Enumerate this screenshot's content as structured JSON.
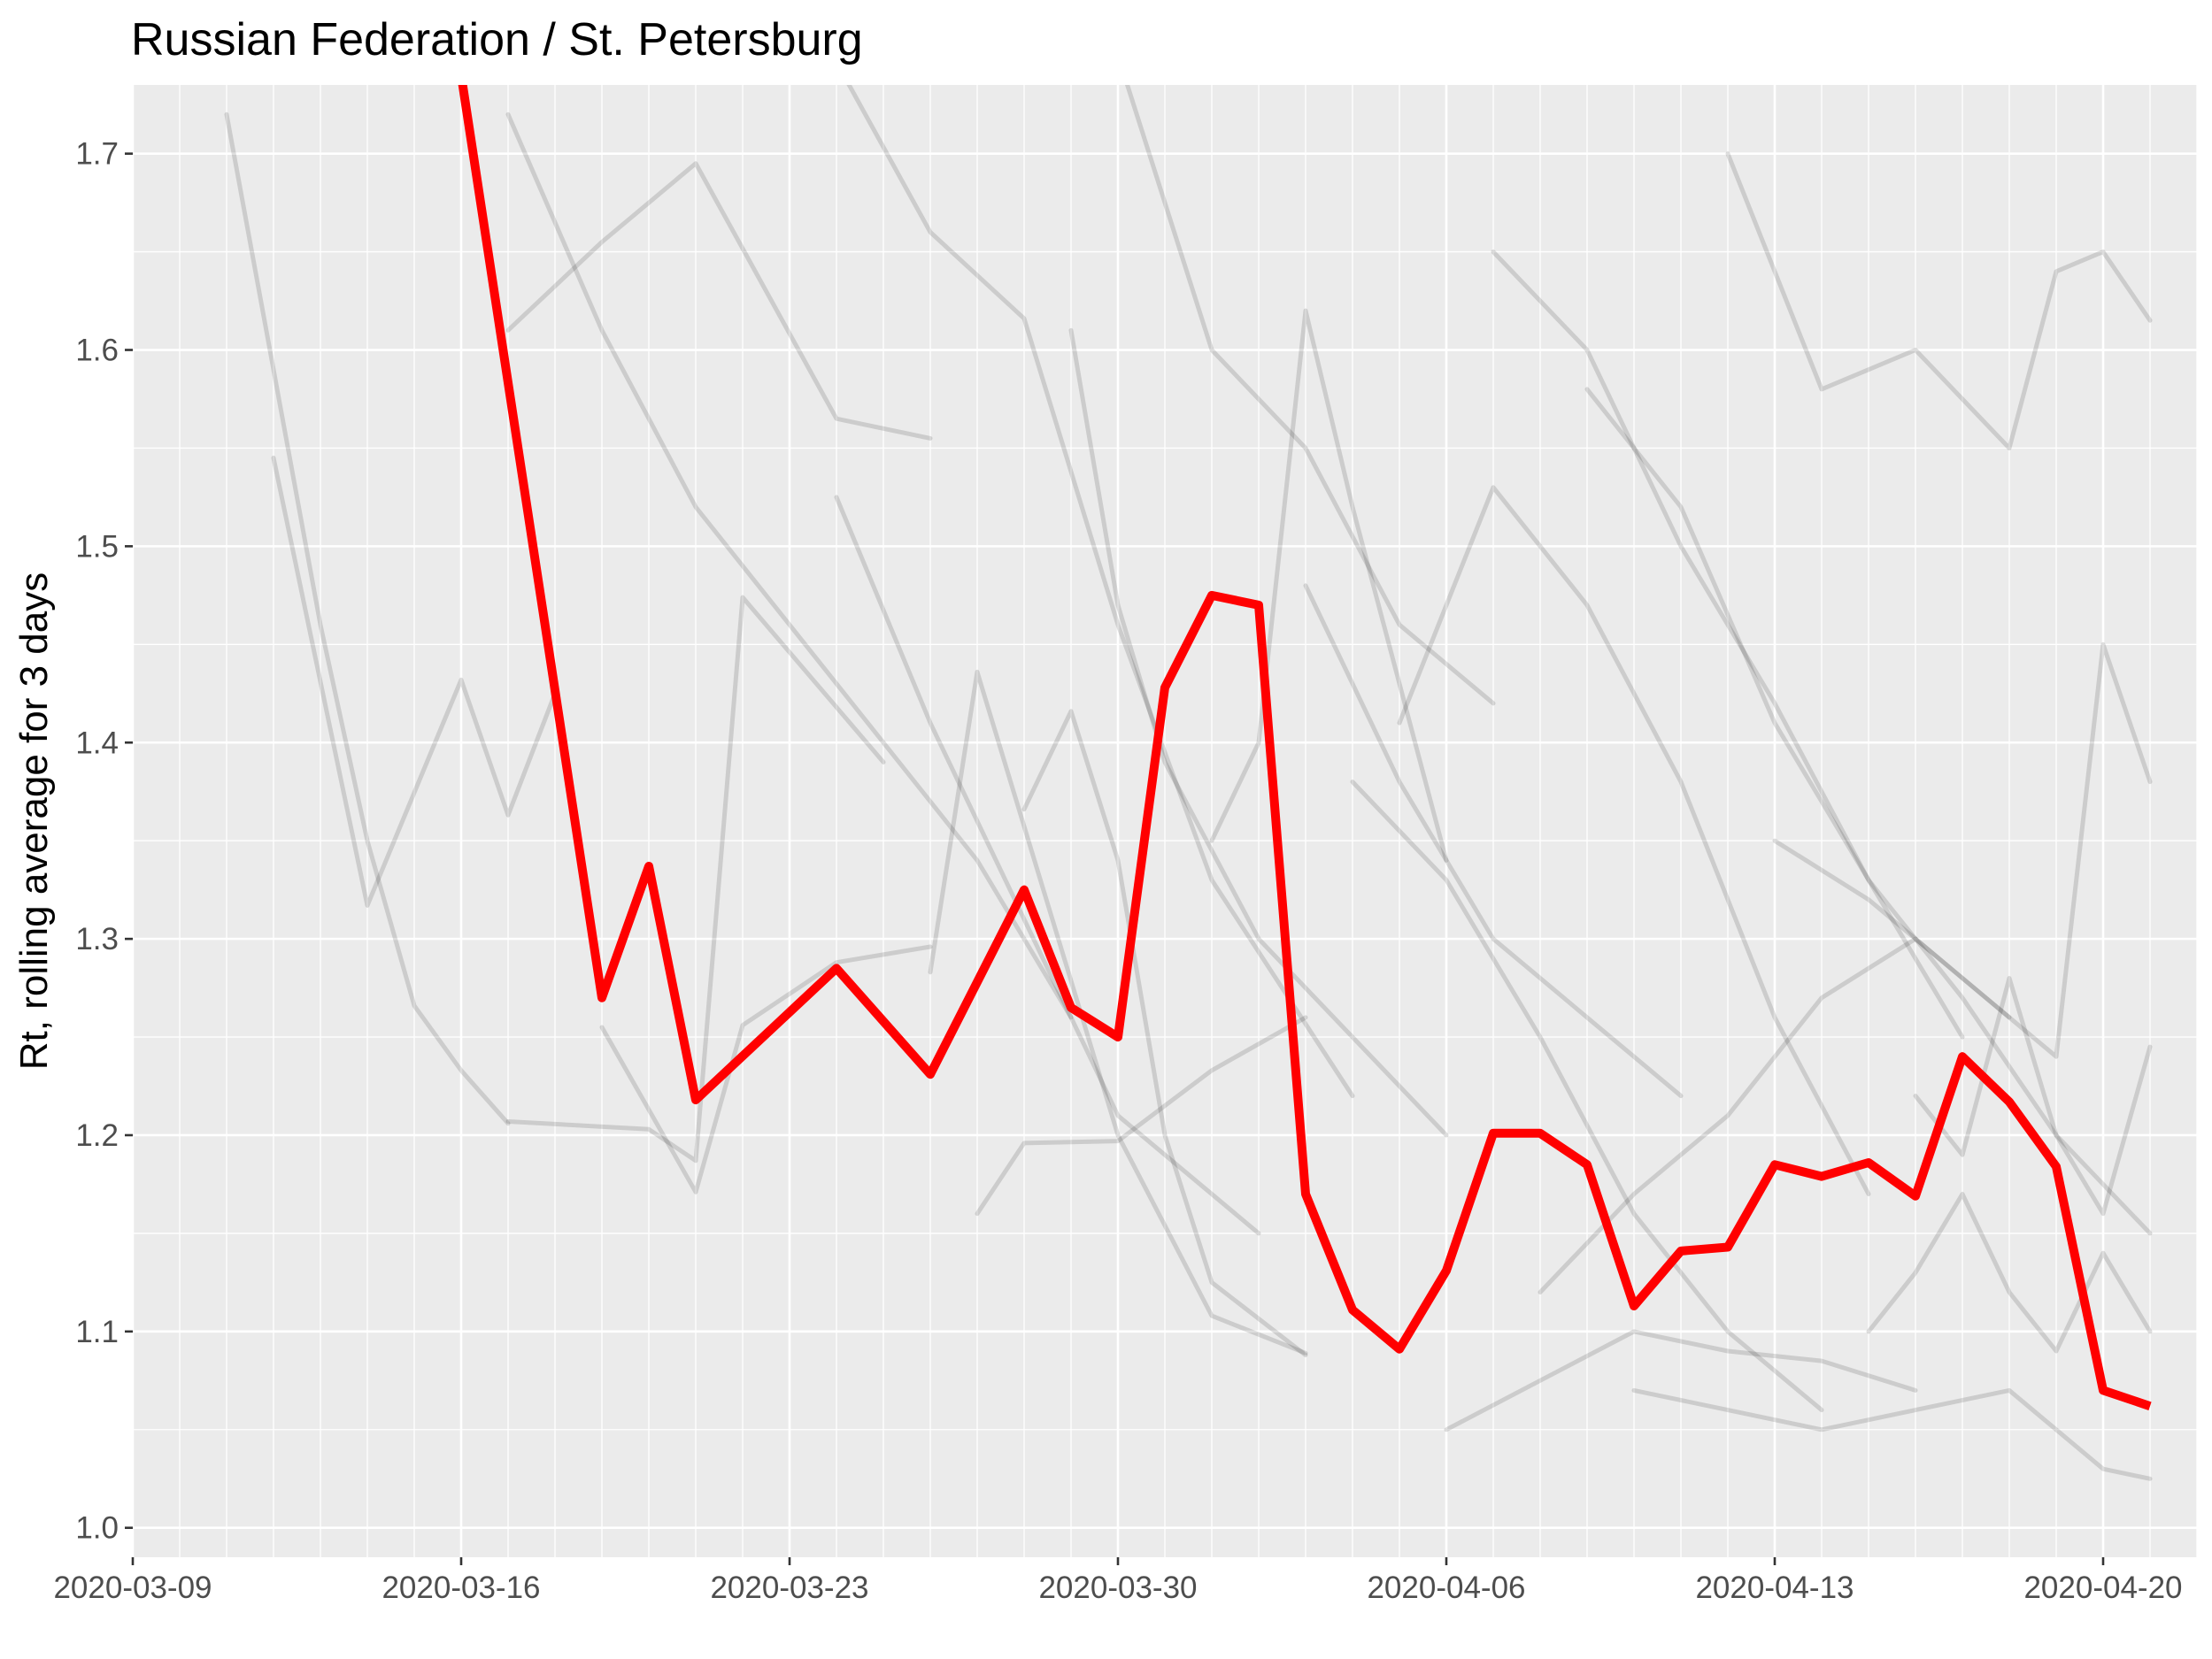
{
  "chart_data": {
    "type": "line",
    "title": "Russian Federation / St. Petersburg",
    "xlabel": "",
    "ylabel": "Rt, rolling average for 3 days",
    "x_axis": {
      "type": "date",
      "min": "2020-03-09",
      "max": "2020-04-22",
      "ticks": [
        "2020-03-09",
        "2020-03-16",
        "2020-03-23",
        "2020-03-30",
        "2020-04-06",
        "2020-04-13",
        "2020-04-20"
      ]
    },
    "y_axis": {
      "min": 0.985,
      "max": 1.735,
      "ticks": [
        "1.0",
        "1.1",
        "1.2",
        "1.3",
        "1.4",
        "1.5",
        "1.6",
        "1.7"
      ]
    },
    "grid": true,
    "colors": {
      "panel_background": "#ebebeb",
      "grid_line": "#ffffff",
      "highlight": "#ff0000",
      "background_series": "#000000"
    },
    "highlight_series": {
      "x": [
        "2020-03-16",
        "2020-03-19",
        "2020-03-20",
        "2020-03-21",
        "2020-03-24",
        "2020-03-26",
        "2020-03-28",
        "2020-03-29",
        "2020-03-30",
        "2020-03-31",
        "2020-04-01",
        "2020-04-02",
        "2020-04-03",
        "2020-04-04",
        "2020-04-05",
        "2020-04-06",
        "2020-04-07",
        "2020-04-08",
        "2020-04-09",
        "2020-04-10",
        "2020-04-11",
        "2020-04-12",
        "2020-04-13",
        "2020-04-14",
        "2020-04-15",
        "2020-04-16",
        "2020-04-17",
        "2020-04-18",
        "2020-04-19",
        "2020-04-20",
        "2020-04-21"
      ],
      "values": [
        1.74,
        1.27,
        1.337,
        1.218,
        1.285,
        1.231,
        1.325,
        1.265,
        1.25,
        1.428,
        1.475,
        1.47,
        1.17,
        1.111,
        1.091,
        1.131,
        1.201,
        1.201,
        1.185,
        1.113,
        1.141,
        1.143,
        1.185,
        1.179,
        1.186,
        1.169,
        1.24,
        1.217,
        1.184,
        1.07,
        1.062
      ]
    },
    "background_series": [
      {
        "x": [
          "2020-03-11",
          "2020-03-13",
          "2020-03-14",
          "2020-03-15",
          "2020-03-16",
          "2020-03-17"
        ],
        "values": [
          1.72,
          1.46,
          1.35,
          1.266,
          1.233,
          1.206
        ]
      },
      {
        "x": [
          "2020-03-12",
          "2020-03-14",
          "2020-03-16",
          "2020-03-17",
          "2020-03-18"
        ],
        "values": [
          1.545,
          1.317,
          1.432,
          1.363,
          1.425
        ]
      },
      {
        "x": [
          "2020-03-17",
          "2020-03-19",
          "2020-03-21",
          "2020-03-24",
          "2020-03-26"
        ],
        "values": [
          1.61,
          1.655,
          1.695,
          1.565,
          1.555
        ]
      },
      {
        "x": [
          "2020-03-17",
          "2020-03-19",
          "2020-03-21",
          "2020-03-24",
          "2020-03-27",
          "2020-03-29"
        ],
        "values": [
          1.72,
          1.61,
          1.52,
          1.43,
          1.34,
          1.26
        ]
      },
      {
        "x": [
          "2020-03-17",
          "2020-03-20",
          "2020-03-21",
          "2020-03-22",
          "2020-03-25"
        ],
        "values": [
          1.207,
          1.203,
          1.187,
          1.474,
          1.39
        ]
      },
      {
        "x": [
          "2020-03-19",
          "2020-03-21",
          "2020-03-22",
          "2020-03-24",
          "2020-03-26"
        ],
        "values": [
          1.255,
          1.171,
          1.256,
          1.288,
          1.296
        ]
      },
      {
        "x": [
          "2020-03-23",
          "2020-03-26",
          "2020-03-28",
          "2020-03-30",
          "2020-04-01",
          "2020-04-04"
        ],
        "values": [
          1.79,
          1.66,
          1.616,
          1.46,
          1.33,
          1.22
        ]
      },
      {
        "x": [
          "2020-03-24",
          "2020-03-26",
          "2020-03-28",
          "2020-03-30",
          "2020-04-02"
        ],
        "values": [
          1.525,
          1.41,
          1.31,
          1.21,
          1.15
        ]
      },
      {
        "x": [
          "2020-03-26",
          "2020-03-27",
          "2020-03-30",
          "2020-04-01",
          "2020-04-03"
        ],
        "values": [
          1.283,
          1.436,
          1.2,
          1.108,
          1.089
        ]
      },
      {
        "x": [
          "2020-03-27",
          "2020-03-28",
          "2020-03-30",
          "2020-04-01",
          "2020-04-03"
        ],
        "values": [
          1.16,
          1.196,
          1.197,
          1.233,
          1.26
        ]
      },
      {
        "x": [
          "2020-03-28",
          "2020-03-29",
          "2020-03-30",
          "2020-03-31",
          "2020-04-01",
          "2020-04-03"
        ],
        "values": [
          1.366,
          1.416,
          1.34,
          1.2,
          1.125,
          1.088
        ]
      },
      {
        "x": [
          "2020-03-29",
          "2020-03-30",
          "2020-03-31",
          "2020-04-02",
          "2020-04-04",
          "2020-04-06"
        ],
        "values": [
          1.61,
          1.47,
          1.39,
          1.3,
          1.25,
          1.2
        ]
      },
      {
        "x": [
          "2020-03-30",
          "2020-04-01",
          "2020-04-03",
          "2020-04-05",
          "2020-04-07"
        ],
        "values": [
          1.75,
          1.6,
          1.55,
          1.46,
          1.42
        ]
      },
      {
        "x": [
          "2020-04-01",
          "2020-04-02",
          "2020-04-03",
          "2020-04-04",
          "2020-04-06"
        ],
        "values": [
          1.35,
          1.4,
          1.62,
          1.52,
          1.34
        ]
      },
      {
        "x": [
          "2020-04-03",
          "2020-04-05",
          "2020-04-07",
          "2020-04-09",
          "2020-04-11"
        ],
        "values": [
          1.48,
          1.38,
          1.3,
          1.26,
          1.22
        ]
      },
      {
        "x": [
          "2020-04-04",
          "2020-04-06",
          "2020-04-08",
          "2020-04-10",
          "2020-04-12",
          "2020-04-14"
        ],
        "values": [
          1.38,
          1.33,
          1.25,
          1.16,
          1.1,
          1.06
        ]
      },
      {
        "x": [
          "2020-04-05",
          "2020-04-07",
          "2020-04-09",
          "2020-04-11",
          "2020-04-13",
          "2020-04-15"
        ],
        "values": [
          1.41,
          1.53,
          1.47,
          1.38,
          1.26,
          1.17
        ]
      },
      {
        "x": [
          "2020-04-06",
          "2020-04-08",
          "2020-04-10",
          "2020-04-12",
          "2020-04-14",
          "2020-04-16"
        ],
        "values": [
          1.05,
          1.075,
          1.1,
          1.09,
          1.085,
          1.07
        ]
      },
      {
        "x": [
          "2020-04-07",
          "2020-04-09",
          "2020-04-11",
          "2020-04-13",
          "2020-04-15",
          "2020-04-17"
        ],
        "values": [
          1.65,
          1.6,
          1.5,
          1.42,
          1.33,
          1.25
        ]
      },
      {
        "x": [
          "2020-04-08",
          "2020-04-10",
          "2020-04-12",
          "2020-04-14",
          "2020-04-16",
          "2020-04-18"
        ],
        "values": [
          1.12,
          1.17,
          1.21,
          1.27,
          1.3,
          1.26
        ]
      },
      {
        "x": [
          "2020-04-09",
          "2020-04-11",
          "2020-04-13",
          "2020-04-15",
          "2020-04-17",
          "2020-04-19",
          "2020-04-21"
        ],
        "values": [
          1.58,
          1.52,
          1.41,
          1.33,
          1.27,
          1.2,
          1.15
        ]
      },
      {
        "x": [
          "2020-04-10",
          "2020-04-12",
          "2020-04-14",
          "2020-04-16",
          "2020-04-18",
          "2020-04-20",
          "2020-04-21"
        ],
        "values": [
          1.07,
          1.06,
          1.05,
          1.06,
          1.07,
          1.03,
          1.025
        ]
      },
      {
        "x": [
          "2020-04-12",
          "2020-04-14",
          "2020-04-16",
          "2020-04-18",
          "2020-04-19",
          "2020-04-20",
          "2020-04-21"
        ],
        "values": [
          1.7,
          1.58,
          1.6,
          1.55,
          1.64,
          1.65,
          1.615
        ]
      },
      {
        "x": [
          "2020-04-13",
          "2020-04-15",
          "2020-04-17",
          "2020-04-19",
          "2020-04-20",
          "2020-04-21"
        ],
        "values": [
          1.35,
          1.32,
          1.28,
          1.24,
          1.45,
          1.38
        ]
      },
      {
        "x": [
          "2020-04-15",
          "2020-04-16",
          "2020-04-17",
          "2020-04-18",
          "2020-04-19",
          "2020-04-20",
          "2020-04-21"
        ],
        "values": [
          1.1,
          1.13,
          1.17,
          1.12,
          1.09,
          1.14,
          1.1
        ]
      },
      {
        "x": [
          "2020-04-16",
          "2020-04-17",
          "2020-04-18",
          "2020-04-19",
          "2020-04-20",
          "2020-04-21"
        ],
        "values": [
          1.22,
          1.19,
          1.28,
          1.2,
          1.16,
          1.245
        ]
      }
    ]
  }
}
